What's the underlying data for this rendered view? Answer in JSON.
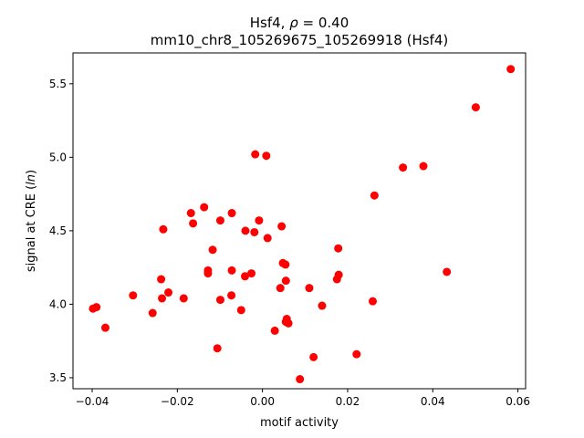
{
  "chart_data": {
    "type": "scatter",
    "title_prefix": "Hsf4,",
    "title_rho": "ρ",
    "title_rho_value": "= 0.40",
    "subtitle": "mm10_chr8_105269675_105269918 (Hsf4)",
    "xlabel": "motif activity",
    "ylabel_prefix": "signal at CRE (",
    "ylabel_italic": "ln",
    "ylabel_suffix": ")",
    "xlim": [
      -0.0445,
      0.0618
    ],
    "ylim": [
      3.425,
      5.71
    ],
    "xticks": [
      -0.04,
      -0.02,
      0.0,
      0.02,
      0.04,
      0.06
    ],
    "xtick_labels": [
      "−0.04",
      "−0.02",
      "0.00",
      "0.02",
      "0.04",
      "0.06"
    ],
    "yticks": [
      3.5,
      4.0,
      4.5,
      5.0,
      5.5
    ],
    "ytick_labels": [
      "3.5",
      "4.0",
      "4.5",
      "5.0",
      "5.5"
    ],
    "marker_color": "#ff0000",
    "points": [
      {
        "x": 0.0583,
        "y": 5.6
      },
      {
        "x": 0.0501,
        "y": 5.34
      },
      {
        "x": 0.0378,
        "y": 4.94
      },
      {
        "x": 0.033,
        "y": 4.93
      },
      {
        "x": 0.0433,
        "y": 4.22
      },
      {
        "x": 0.0263,
        "y": 4.74
      },
      {
        "x": 0.0259,
        "y": 4.02
      },
      {
        "x": 0.0221,
        "y": 3.66
      },
      {
        "x": 0.0178,
        "y": 4.38
      },
      {
        "x": 0.0179,
        "y": 4.2
      },
      {
        "x": 0.0175,
        "y": 4.17
      },
      {
        "x": 0.014,
        "y": 3.99
      },
      {
        "x": 0.012,
        "y": 3.64
      },
      {
        "x": 0.011,
        "y": 4.11
      },
      {
        "x": 0.0088,
        "y": 3.49
      },
      {
        "x": 0.0061,
        "y": 3.87
      },
      {
        "x": 0.0057,
        "y": 3.9
      },
      {
        "x": 0.0055,
        "y": 3.88
      },
      {
        "x": 0.0054,
        "y": 4.27
      },
      {
        "x": 0.0048,
        "y": 4.28
      },
      {
        "x": 0.0055,
        "y": 4.16
      },
      {
        "x": 0.0045,
        "y": 4.53
      },
      {
        "x": 0.0042,
        "y": 4.11
      },
      {
        "x": 0.0029,
        "y": 3.82
      },
      {
        "x": 0.0012,
        "y": 4.45
      },
      {
        "x": 0.0009,
        "y": 5.01
      },
      {
        "x": -0.0017,
        "y": 5.02
      },
      {
        "x": -0.0008,
        "y": 4.57
      },
      {
        "x": -0.0019,
        "y": 4.49
      },
      {
        "x": -0.0026,
        "y": 4.21
      },
      {
        "x": -0.004,
        "y": 4.5
      },
      {
        "x": -0.0041,
        "y": 4.19
      },
      {
        "x": -0.005,
        "y": 3.96
      },
      {
        "x": -0.0072,
        "y": 4.62
      },
      {
        "x": -0.0072,
        "y": 4.23
      },
      {
        "x": -0.0073,
        "y": 4.06
      },
      {
        "x": -0.0099,
        "y": 4.57
      },
      {
        "x": -0.0099,
        "y": 4.03
      },
      {
        "x": -0.0106,
        "y": 3.7
      },
      {
        "x": -0.0117,
        "y": 4.37
      },
      {
        "x": -0.0128,
        "y": 4.23
      },
      {
        "x": -0.0128,
        "y": 4.21
      },
      {
        "x": -0.0137,
        "y": 4.66
      },
      {
        "x": -0.0163,
        "y": 4.55
      },
      {
        "x": -0.0168,
        "y": 4.62
      },
      {
        "x": -0.0185,
        "y": 4.04
      },
      {
        "x": -0.0221,
        "y": 4.08
      },
      {
        "x": -0.0233,
        "y": 4.51
      },
      {
        "x": -0.0238,
        "y": 4.17
      },
      {
        "x": -0.0236,
        "y": 4.04
      },
      {
        "x": -0.0258,
        "y": 3.94
      },
      {
        "x": -0.0304,
        "y": 4.06
      },
      {
        "x": -0.0369,
        "y": 3.84
      },
      {
        "x": -0.039,
        "y": 3.98
      },
      {
        "x": -0.0398,
        "y": 3.97
      }
    ]
  }
}
